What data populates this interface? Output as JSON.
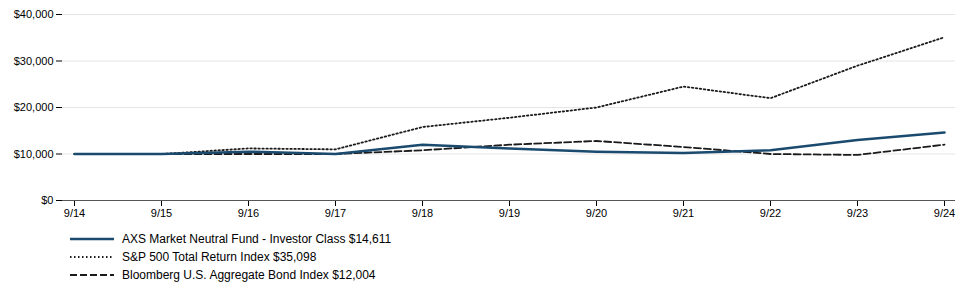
{
  "chart_data": {
    "type": "line",
    "categories": [
      "9/14",
      "9/15",
      "9/16",
      "9/17",
      "9/18",
      "9/19",
      "9/20",
      "9/21",
      "9/22",
      "9/23",
      "9/24"
    ],
    "series": [
      {
        "name": "AXS Market Neutral Fund - Investor Class $14,611",
        "color": "#1a4a6e",
        "line_style": "solid",
        "values": [
          10000,
          10000,
          10500,
          10000,
          12000,
          11200,
          10500,
          10200,
          10800,
          13000,
          14611
        ]
      },
      {
        "name": "S&P 500 Total Return Index $35,098",
        "color": "#1a1a1a",
        "line_style": "dotted",
        "values": [
          10000,
          10000,
          11200,
          11000,
          15800,
          17800,
          20000,
          24500,
          22000,
          29000,
          35098
        ]
      },
      {
        "name": "Bloomberg U.S. Aggregate Bond Index $12,004",
        "color": "#1a1a1a",
        "line_style": "dashed",
        "values": [
          10000,
          10000,
          10000,
          10000,
          10800,
          12000,
          12800,
          11500,
          10000,
          9800,
          12004
        ]
      }
    ],
    "ylim": [
      0,
      40000
    ],
    "yticks": [
      {
        "value": 0,
        "label": "$0"
      },
      {
        "value": 10000,
        "label": "$10,000"
      },
      {
        "value": 20000,
        "label": "$20,000"
      },
      {
        "value": 30000,
        "label": "$30,000"
      },
      {
        "value": 40000,
        "label": "$40,000"
      }
    ],
    "grid": true,
    "legend": "bottom"
  }
}
